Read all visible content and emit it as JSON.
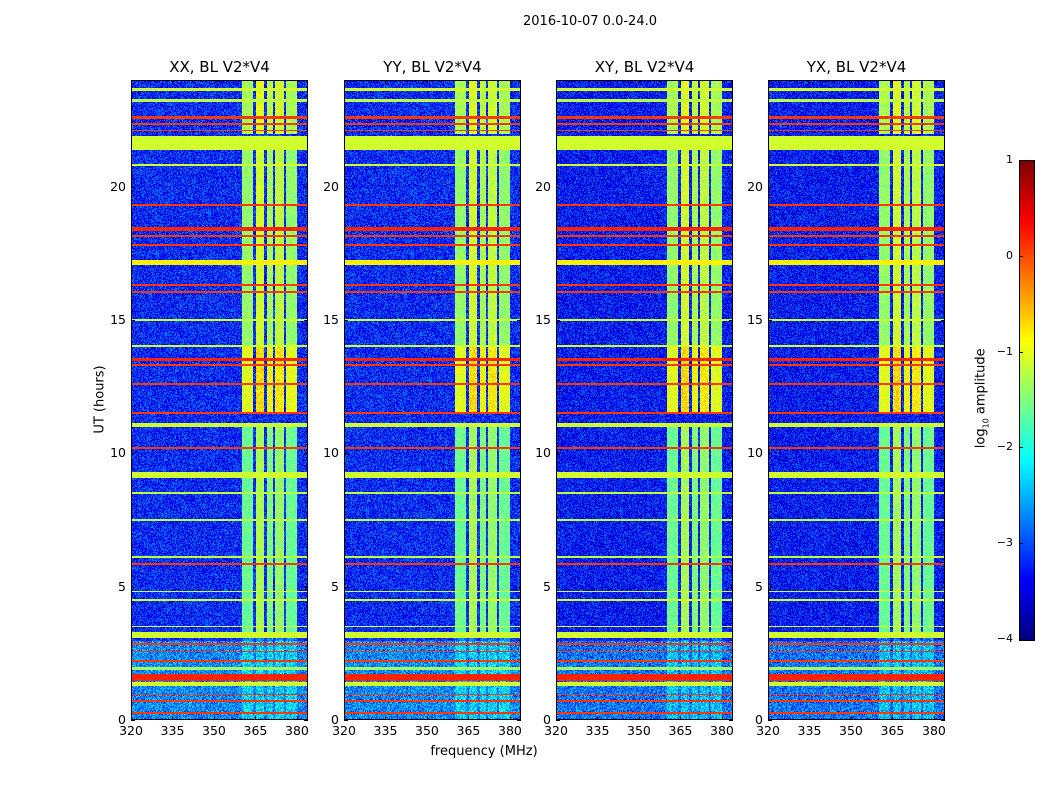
{
  "chart_data": {
    "type": "heatmap",
    "title": "2016-10-07 0.0-24.0",
    "xlabel": "frequency (MHz)",
    "ylabel": "UT (hours)",
    "xlim": [
      320,
      384
    ],
    "ylim": [
      0,
      24
    ],
    "xticks": [
      "320",
      "335",
      "350",
      "365",
      "380"
    ],
    "xtick_values": [
      320,
      335,
      350,
      365,
      380
    ],
    "yticks": [
      "0",
      "5",
      "10",
      "15",
      "20"
    ],
    "ytick_values": [
      0,
      5,
      10,
      15,
      20
    ],
    "panels": [
      {
        "title": "XX, BL V2*V4"
      },
      {
        "title": "YY, BL V2*V4"
      },
      {
        "title": "XY, BL V2*V4"
      },
      {
        "title": "YX, BL V2*V4"
      }
    ],
    "colorbar": {
      "label_main": "log",
      "label_sub": "10",
      "label_end": " amplitude",
      "colormap": "jet",
      "range": [
        -4,
        1
      ],
      "ticks": [
        "1",
        "0",
        "−1",
        "−2",
        "−3",
        "−4"
      ],
      "tick_values": [
        1,
        0,
        -1,
        -2,
        -3,
        -4
      ]
    },
    "background_level": -3.2,
    "horizontal_rfi": [
      {
        "from": 21.4,
        "to": 21.9,
        "level": -1.1
      },
      {
        "from": 23.6,
        "to": 23.7,
        "level": -1.1
      },
      {
        "from": 23.2,
        "to": 23.3,
        "level": -1.2
      },
      {
        "from": 22.55,
        "to": 22.65,
        "level": 0.1
      },
      {
        "from": 22.35,
        "to": 22.42,
        "level": 0.1
      },
      {
        "from": 22.1,
        "to": 22.15,
        "level": 0.1
      },
      {
        "from": 20.8,
        "to": 20.85,
        "level": -1.1
      },
      {
        "from": 19.3,
        "to": 19.35,
        "level": 0.1
      },
      {
        "from": 18.35,
        "to": 18.5,
        "level": 0.2
      },
      {
        "from": 18.15,
        "to": 18.22,
        "level": 0.1
      },
      {
        "from": 17.8,
        "to": 17.85,
        "level": 0.1
      },
      {
        "from": 17.1,
        "to": 17.25,
        "level": -0.8
      },
      {
        "from": 16.3,
        "to": 16.38,
        "level": 0.1
      },
      {
        "from": 16.05,
        "to": 16.12,
        "level": 0.1
      },
      {
        "from": 15.0,
        "to": 15.05,
        "level": -1.1
      },
      {
        "from": 14.0,
        "to": 14.1,
        "level": -1.1
      },
      {
        "from": 13.5,
        "to": 13.6,
        "level": 0.2
      },
      {
        "from": 13.3,
        "to": 13.36,
        "level": 0.1
      },
      {
        "from": 12.6,
        "to": 12.66,
        "level": 0.1
      },
      {
        "from": 11.5,
        "to": 11.56,
        "level": 0.1
      },
      {
        "from": 11.0,
        "to": 11.15,
        "level": -1.1
      },
      {
        "from": 10.2,
        "to": 10.25,
        "level": 0.1
      },
      {
        "from": 9.1,
        "to": 9.3,
        "level": -1.1
      },
      {
        "from": 8.5,
        "to": 8.55,
        "level": -1.2
      },
      {
        "from": 7.5,
        "to": 7.55,
        "level": -1.2
      },
      {
        "from": 6.1,
        "to": 6.15,
        "level": -1.2
      },
      {
        "from": 5.85,
        "to": 5.92,
        "level": 0.1
      },
      {
        "from": 4.8,
        "to": 4.84,
        "level": -1.1
      },
      {
        "from": 4.5,
        "to": 4.54,
        "level": -1.1
      },
      {
        "from": 3.5,
        "to": 3.54,
        "level": -1.1
      },
      {
        "from": 3.1,
        "to": 3.3,
        "level": -1.1
      },
      {
        "from": 2.85,
        "to": 2.9,
        "level": 0.1
      },
      {
        "from": 2.55,
        "to": 2.6,
        "level": 0.1
      },
      {
        "from": 2.2,
        "to": 2.25,
        "level": 0.1
      },
      {
        "from": 1.9,
        "to": 2.0,
        "level": -1.3
      },
      {
        "from": 1.5,
        "to": 1.75,
        "level": 0.2
      },
      {
        "from": 1.3,
        "to": 1.45,
        "level": -1.1
      },
      {
        "from": 0.95,
        "to": 1.0,
        "level": 0.1
      },
      {
        "from": 0.7,
        "to": 0.75,
        "level": 0.1
      },
      {
        "from": 0.25,
        "to": 0.3,
        "level": 0.1
      }
    ],
    "vertical_rfi": [
      {
        "f_from": 360,
        "f_to": 364,
        "level": -1.6
      },
      {
        "f_from": 365,
        "f_to": 368,
        "level": -1.3
      },
      {
        "f_from": 369,
        "f_to": 371,
        "level": -1.5
      },
      {
        "f_from": 372,
        "f_to": 375,
        "level": -1.4
      },
      {
        "f_from": 376,
        "f_to": 380,
        "level": -1.6
      }
    ],
    "vertical_rfi_time_ranges": [
      {
        "from": 3.3,
        "to": 11.0,
        "level_offset": 0
      },
      {
        "from": 11.5,
        "to": 14.0,
        "level_offset": 0.6
      },
      {
        "from": 14.0,
        "to": 21.4,
        "level_offset": 0.2
      },
      {
        "from": 22.0,
        "to": 24.0,
        "level_offset": 0.3
      }
    ]
  }
}
